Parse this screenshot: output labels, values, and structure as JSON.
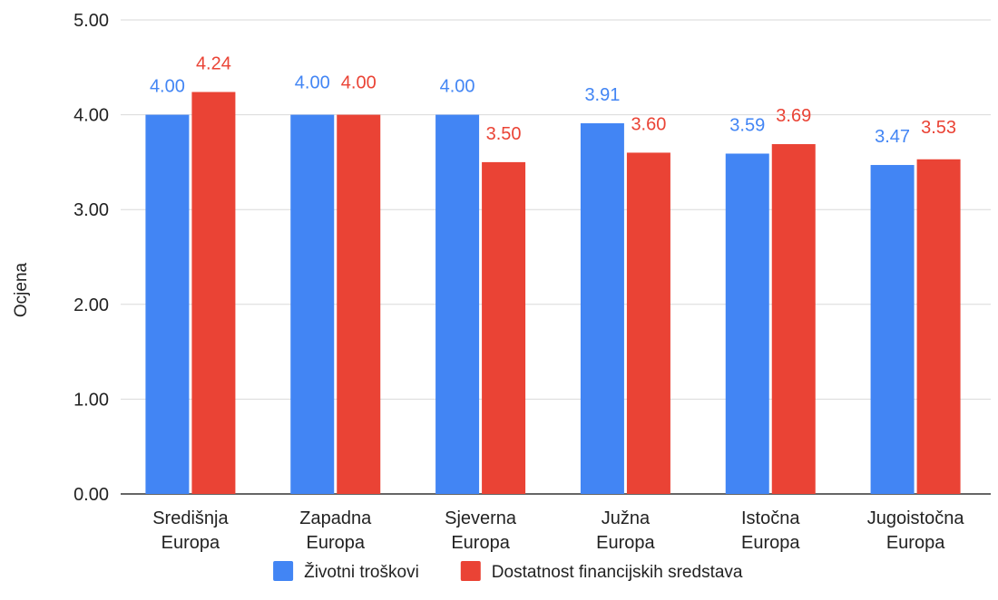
{
  "chart_data": {
    "type": "bar",
    "categories": [
      [
        "Središnja",
        "Europa"
      ],
      [
        "Zapadna",
        "Europa"
      ],
      [
        "Sjeverna",
        "Europa"
      ],
      [
        "Južna",
        "Europa"
      ],
      [
        "Istočna",
        "Europa"
      ],
      [
        "Jugoistočna",
        "Europa"
      ]
    ],
    "series": [
      {
        "name": "Životni troškovi",
        "color": "#4285F4",
        "values": [
          4.0,
          4.0,
          4.0,
          3.91,
          3.59,
          3.47
        ],
        "labels": [
          "4.00",
          "4.00",
          "4.00",
          "3.91",
          "3.59",
          "3.47"
        ]
      },
      {
        "name": "Dostatnost financijskih sredstava",
        "color": "#EA4335",
        "values": [
          4.24,
          4.0,
          3.5,
          3.6,
          3.69,
          3.53
        ],
        "labels": [
          "4.24",
          "4.00",
          "3.50",
          "3.60",
          "3.69",
          "3.53"
        ]
      }
    ],
    "title": "",
    "xlabel": "",
    "ylabel": "Ocjena",
    "ylim": [
      0,
      5
    ],
    "yticks": [
      "0.00",
      "1.00",
      "2.00",
      "3.00",
      "4.00",
      "5.00"
    ],
    "ytick_values": [
      0,
      1,
      2,
      3,
      4,
      5
    ],
    "grid": true,
    "legend_position": "bottom-center"
  }
}
